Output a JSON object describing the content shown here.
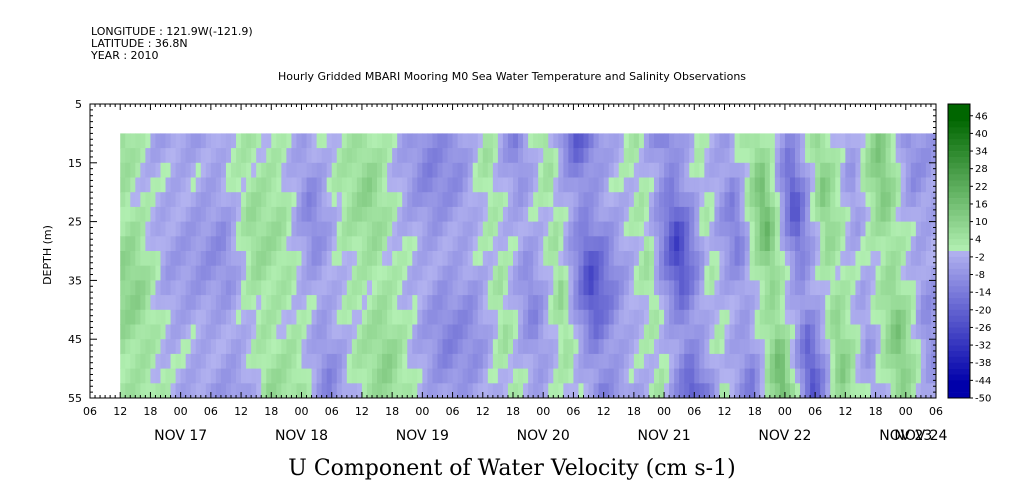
{
  "header": {
    "longitude": "LONGITUDE : 121.9W(-121.9)",
    "latitude": "LATITUDE : 36.8N",
    "year": "YEAR : 2010"
  },
  "chart_data": {
    "type": "heatmap",
    "title": "Hourly Gridded MBARI Mooring M0 Sea Water Temperature and Salinity Observations",
    "variable_title": "U Component of Water Velocity (cm s-1)",
    "ylabel": "DEPTH (m)",
    "ylim": [
      5,
      55
    ],
    "y_inverted": true,
    "y_ticks": [
      "5",
      "15",
      "25",
      "35",
      "45",
      "55"
    ],
    "data_depth_range": [
      10,
      55
    ],
    "xlim_hours": [
      "NOV 17 06:00",
      "NOV 24 06:00"
    ],
    "x_tick_labels": [
      "06",
      "12",
      "18",
      "00",
      "06",
      "12",
      "18",
      "00",
      "06",
      "12",
      "18",
      "00",
      "06",
      "12",
      "18",
      "00",
      "06",
      "12",
      "18",
      "00",
      "06",
      "12",
      "18",
      "00",
      "06",
      "12",
      "18",
      "00",
      "06"
    ],
    "day_labels": [
      "NOV 17",
      "NOV 18",
      "NOV 19",
      "NOV 20",
      "NOV 21",
      "NOV 22",
      "NOV 23",
      "NOV 24"
    ],
    "data_start": "NOV 17 12:00",
    "data_end": "NOV 24 06:00",
    "column_means": [
      {
        "time": "NOV 17 12:00",
        "u": 8
      },
      {
        "time": "NOV 17 18:00",
        "u": -4
      },
      {
        "time": "NOV 18 00:00",
        "u": -6
      },
      {
        "time": "NOV 18 06:00",
        "u": -8
      },
      {
        "time": "NOV 18 12:00",
        "u": 6
      },
      {
        "time": "NOV 18 18:00",
        "u": 4
      },
      {
        "time": "NOV 19 00:00",
        "u": -10
      },
      {
        "time": "NOV 19 06:00",
        "u": 2
      },
      {
        "time": "NOV 19 12:00",
        "u": 8
      },
      {
        "time": "NOV 19 18:00",
        "u": -2
      },
      {
        "time": "NOV 20 00:00",
        "u": -10
      },
      {
        "time": "NOV 20 06:00",
        "u": -8
      },
      {
        "time": "NOV 20 12:00",
        "u": 4
      },
      {
        "time": "NOV 20 18:00",
        "u": -10
      },
      {
        "time": "NOV 21 00:00",
        "u": 6
      },
      {
        "time": "NOV 21 06:00",
        "u": -22
      },
      {
        "time": "NOV 21 12:00",
        "u": -6
      },
      {
        "time": "NOV 21 18:00",
        "u": 4
      },
      {
        "time": "NOV 22 00:00",
        "u": -24
      },
      {
        "time": "NOV 22 06:00",
        "u": 2
      },
      {
        "time": "NOV 22 12:00",
        "u": -12
      },
      {
        "time": "NOV 22 18:00",
        "u": 16
      },
      {
        "time": "NOV 23 00:00",
        "u": -20
      },
      {
        "time": "NOV 23 06:00",
        "u": 10
      },
      {
        "time": "NOV 23 12:00",
        "u": -6
      },
      {
        "time": "NOV 23 18:00",
        "u": 12
      },
      {
        "time": "NOV 24 00:00",
        "u": -8
      },
      {
        "time": "NOV 24 06:00",
        "u": -4
      }
    ],
    "colorbar": {
      "range": [
        -50,
        50
      ],
      "labels": [
        "46",
        "40",
        "34",
        "28",
        "22",
        "16",
        "10",
        "4",
        "-2",
        "-8",
        "-14",
        "-20",
        "-26",
        "-32",
        "-38",
        "-44",
        "-50"
      ],
      "negative_color": "#0000aa",
      "neutral_low_color": "#b3b3f0",
      "neutral_high_color": "#b3f0b3",
      "positive_color": "#006600"
    }
  }
}
